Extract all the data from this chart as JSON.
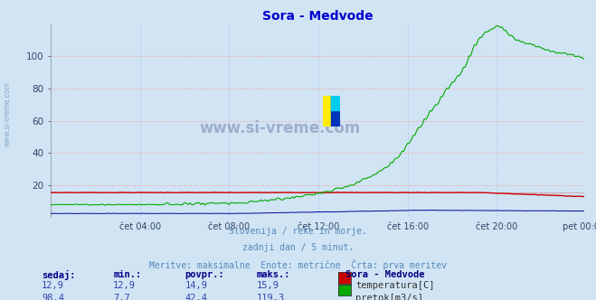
{
  "title": "Sora - Medvode",
  "title_color": "#0000cc",
  "background_color": "#d0e4f4",
  "plot_bg_color": "#d0e4f4",
  "grid_color_h": "#ff9999",
  "grid_color_v": "#aabbdd",
  "watermark_text": "www.si-vreme.com",
  "watermark_color": "#8899bb",
  "subtitle_lines": [
    "Slovenija / reke in morje.",
    "zadnji dan / 5 minut.",
    "Meritve: maksimalne  Enote: metrične  Črta: prva meritev"
  ],
  "subtitle_color": "#5588bb",
  "legend_title": "Sora - Medvode",
  "legend_title_color": "#000080",
  "legend_items": [
    {
      "label": "temperatura[C]",
      "color": "#cc0000"
    },
    {
      "label": "pretok[m3/s]",
      "color": "#00aa00"
    }
  ],
  "table_headers": [
    "sedaj:",
    "min.:",
    "povpr.:",
    "maks.:"
  ],
  "table_rows": [
    [
      "12,9",
      "12,9",
      "14,9",
      "15,9"
    ],
    [
      "98,4",
      "7,7",
      "42,4",
      "119,3"
    ]
  ],
  "temp_color": "#cc0000",
  "flow_color": "#00aa00",
  "height_color": "#000099",
  "n_points": 288,
  "ylim": [
    0,
    120
  ],
  "yticks": [
    20,
    40,
    60,
    80,
    100
  ],
  "xtick_labels": [
    "čet 04:00",
    "čet 08:00",
    "čet 12:00",
    "čet 16:00",
    "čet 20:00",
    "pet 00:00"
  ]
}
